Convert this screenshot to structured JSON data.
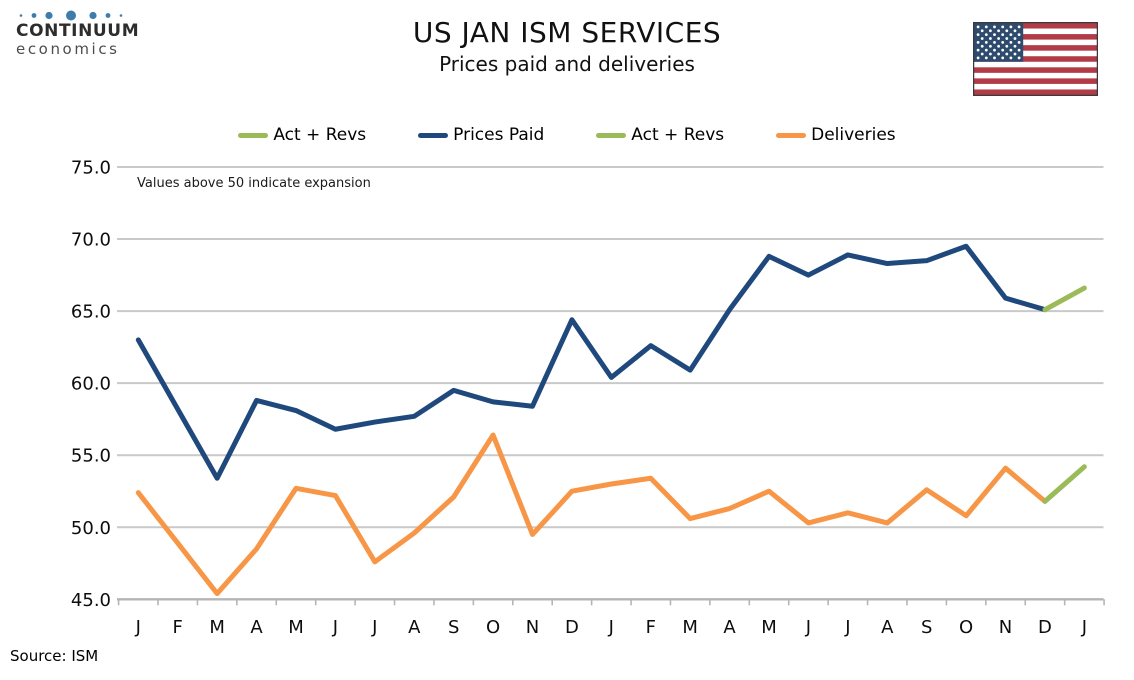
{
  "header": {
    "logo": {
      "line1": "CONTINUUM",
      "line2": "economics"
    },
    "title": "US JAN ISM SERVICES",
    "subtitle": "Prices paid and deliveries",
    "flag_icon": "us-flag"
  },
  "legend": [
    {
      "label": "Act + Revs",
      "color": "#9BBB59"
    },
    {
      "label": "Prices Paid",
      "color": "#1F497D"
    },
    {
      "label": "Act + Revs",
      "color": "#9BBB59"
    },
    {
      "label": "Deliveries",
      "color": "#F79646"
    }
  ],
  "annotation": "Values above 50 indicate expansion",
  "source": "Source: ISM",
  "colors": {
    "prices_paid": "#1F497D",
    "deliveries": "#F79646",
    "act_revs": "#9BBB59",
    "gridline": "#C9C9C9",
    "axis": "#B5B5B5",
    "flag_red": "#B23B48",
    "flag_blue": "#2E4B6E",
    "logo_dot_blue": "#3E7CAC"
  },
  "chart_data": {
    "type": "line",
    "title": "US JAN ISM SERVICES",
    "subtitle": "Prices paid and deliveries",
    "xlabel": "",
    "ylabel": "",
    "ylim": [
      45,
      75
    ],
    "ytick_step": 5,
    "ytick_labels": [
      "45.0",
      "50.0",
      "55.0",
      "60.0",
      "65.0",
      "70.0",
      "75.0"
    ],
    "grid": true,
    "legend_position": "top",
    "categories": [
      "J",
      "F",
      "M",
      "A",
      "M",
      "J",
      "J",
      "A",
      "S",
      "O",
      "N",
      "D",
      "J",
      "F",
      "M",
      "A",
      "M",
      "J",
      "J",
      "A",
      "S",
      "O",
      "N",
      "D",
      "J"
    ],
    "series": [
      {
        "name": "Prices Paid",
        "color": "#1F497D",
        "values": [
          63.0,
          58.2,
          53.4,
          58.8,
          58.1,
          56.8,
          57.3,
          57.7,
          59.5,
          58.7,
          58.4,
          64.4,
          60.4,
          62.6,
          60.9,
          65.1,
          68.8,
          67.5,
          68.9,
          68.3,
          68.5,
          69.5,
          65.9,
          65.1,
          null
        ]
      },
      {
        "name": "Act + Revs",
        "color": "#9BBB59",
        "values": [
          null,
          null,
          null,
          null,
          null,
          null,
          null,
          null,
          null,
          null,
          null,
          null,
          null,
          null,
          null,
          null,
          null,
          null,
          null,
          null,
          null,
          null,
          null,
          65.1,
          66.6
        ]
      },
      {
        "name": "Deliveries",
        "color": "#F79646",
        "values": [
          52.4,
          48.9,
          45.4,
          48.5,
          52.7,
          52.2,
          47.6,
          49.6,
          52.1,
          56.4,
          49.5,
          52.5,
          53.0,
          53.4,
          50.6,
          51.3,
          52.5,
          50.3,
          51.0,
          50.3,
          52.6,
          50.8,
          54.1,
          51.8,
          null
        ]
      },
      {
        "name": "Act + Revs",
        "color": "#9BBB59",
        "values": [
          null,
          null,
          null,
          null,
          null,
          null,
          null,
          null,
          null,
          null,
          null,
          null,
          null,
          null,
          null,
          null,
          null,
          null,
          null,
          null,
          null,
          null,
          null,
          51.8,
          54.2
        ]
      }
    ]
  }
}
